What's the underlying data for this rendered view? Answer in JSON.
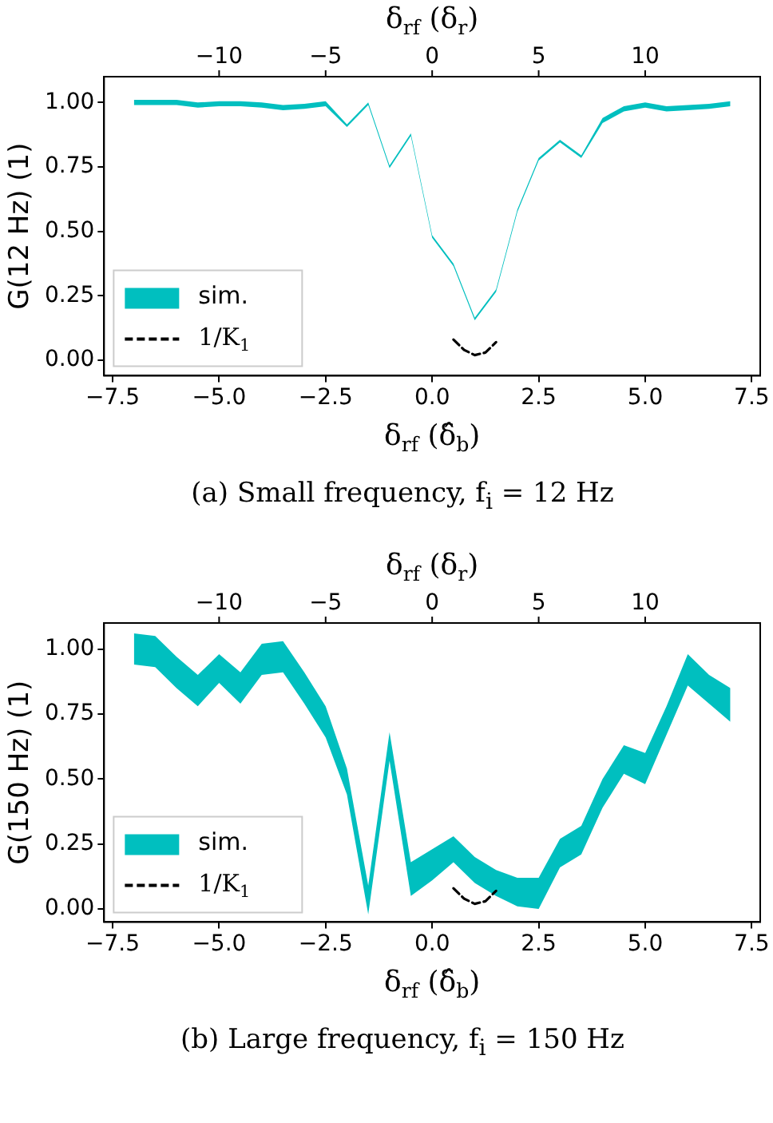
{
  "chart_data": [
    {
      "type": "line",
      "ylabel": "G(12 Hz) (1)",
      "xlabel": "δ$_{rf}$ (δ̂$_{b}$)",
      "x2label": "δ$_{rf}$ (δ$_{r}$)",
      "legend": "bottom left",
      "annotations": [
        "(a) Small frequency, f$_{i}$ = 12 Hz"
      ],
      "xlim": [
        -7.7,
        7.7
      ],
      "ylim": [
        -0.06,
        1.1
      ],
      "x2lim": [
        -15.4,
        15.4
      ],
      "xticks": [
        {
          "value": -7.5,
          "label": "−7.5"
        },
        {
          "value": -5,
          "label": "−5.0"
        },
        {
          "value": -2.5,
          "label": "−2.5"
        },
        {
          "value": 0,
          "label": "0.0"
        },
        {
          "value": 2.5,
          "label": "2.5"
        },
        {
          "value": 5,
          "label": "5.0"
        },
        {
          "value": 7.5,
          "label": "7.5"
        }
      ],
      "x2ticks": [
        -10,
        -5,
        0,
        5,
        10
      ],
      "yticks": [
        {
          "value": 0,
          "label": "0.00"
        },
        {
          "value": 0.25,
          "label": "0.25"
        },
        {
          "value": 0.5,
          "label": "0.50"
        },
        {
          "value": 0.75,
          "label": "0.75"
        },
        {
          "value": 1,
          "label": "1.00"
        }
      ],
      "x": [
        -7,
        -6.5,
        -6,
        -5.5,
        -5,
        -4.5,
        -4,
        -3.5,
        -3,
        -2.5,
        -2,
        -1.5,
        -1,
        -0.5,
        0,
        0.5,
        1,
        1.5,
        2,
        2.5,
        3,
        3.5,
        4,
        4.5,
        5,
        5.5,
        6,
        6.5,
        7
      ],
      "series": [
        {
          "name": "sim.",
          "color": "#00bfbf",
          "values": [
            null,
            null,
            null,
            null,
            null,
            null,
            null,
            null,
            null,
            null,
            null,
            null,
            null,
            null,
            null,
            null,
            null,
            null,
            null,
            null,
            null,
            null,
            null,
            null,
            null,
            null,
            null,
            null,
            null
          ],
          "lower": [
            0.99,
            0.99,
            0.99,
            0.98,
            0.985,
            0.985,
            0.98,
            0.97,
            0.975,
            0.985,
            0.905,
            0.99,
            0.745,
            0.87,
            0.475,
            0.365,
            0.155,
            0.265,
            0.575,
            0.775,
            0.845,
            0.785,
            0.92,
            0.965,
            0.98,
            0.965,
            0.97,
            0.975,
            0.985
          ],
          "upper": [
            1.01,
            1.01,
            1.01,
            1.0,
            1.005,
            1.005,
            1.0,
            0.99,
            0.995,
            1.005,
            0.915,
            1.0,
            0.755,
            0.88,
            0.485,
            0.375,
            0.165,
            0.275,
            0.585,
            0.785,
            0.855,
            0.795,
            0.94,
            0.985,
            1.0,
            0.985,
            0.99,
            0.995,
            1.005
          ]
        },
        {
          "name": "1/K$_{1}$",
          "type": "line",
          "color": "#000000",
          "line_style": "dashed",
          "x": [
            0.5,
            0.75,
            1.0,
            1.25,
            1.5
          ],
          "values": [
            0.08,
            0.04,
            0.02,
            0.03,
            0.07
          ]
        }
      ]
    },
    {
      "type": "line",
      "ylabel": "G(150 Hz) (1)",
      "xlabel": "δ$_{rf}$ (δ̂$_{b}$)",
      "x2label": "δ$_{rf}$ (δ$_{r}$)",
      "legend": "bottom left",
      "annotations": [
        "(b) Large frequency, f$_{i}$ = 150 Hz"
      ],
      "xlim": [
        -7.7,
        7.7
      ],
      "ylim": [
        -0.05,
        1.1
      ],
      "x2lim": [
        -15.4,
        15.4
      ],
      "xticks": [
        {
          "value": -7.5,
          "label": "−7.5"
        },
        {
          "value": -5,
          "label": "−5.0"
        },
        {
          "value": -2.5,
          "label": "−2.5"
        },
        {
          "value": 0,
          "label": "0.0"
        },
        {
          "value": 2.5,
          "label": "2.5"
        },
        {
          "value": 5,
          "label": "5.0"
        },
        {
          "value": 7.5,
          "label": "7.5"
        }
      ],
      "x2ticks": [
        -10,
        -5,
        0,
        5,
        10
      ],
      "yticks": [
        {
          "value": 0,
          "label": "0.00"
        },
        {
          "value": 0.25,
          "label": "0.25"
        },
        {
          "value": 0.5,
          "label": "0.50"
        },
        {
          "value": 0.75,
          "label": "0.75"
        },
        {
          "value": 1,
          "label": "1.00"
        }
      ],
      "x": [
        -7,
        -6.5,
        -6,
        -5.5,
        -5,
        -4.5,
        -4,
        -3.5,
        -3,
        -2.5,
        -2,
        -1.5,
        -1,
        -0.5,
        0,
        0.5,
        1,
        1.5,
        2,
        2.5,
        3,
        3.5,
        4,
        4.5,
        5,
        5.5,
        6,
        6.5,
        7
      ],
      "series": [
        {
          "name": "sim.",
          "color": "#00bfbf",
          "values": [
            null,
            null,
            null,
            null,
            null,
            null,
            null,
            null,
            null,
            null,
            null,
            null,
            null,
            null,
            null,
            null,
            null,
            null,
            null,
            null,
            null,
            null,
            null,
            null,
            null,
            null,
            null,
            null,
            null
          ],
          "lower": [
            0.94,
            0.93,
            0.85,
            0.78,
            0.87,
            0.79,
            0.9,
            0.91,
            0.79,
            0.66,
            0.44,
            -0.02,
            0.57,
            0.05,
            0.11,
            0.18,
            0.1,
            0.05,
            0.01,
            0.0,
            0.16,
            0.21,
            0.39,
            0.52,
            0.48,
            0.67,
            0.86,
            0.79,
            0.72
          ],
          "upper": [
            1.06,
            1.05,
            0.97,
            0.9,
            0.98,
            0.91,
            1.02,
            1.03,
            0.91,
            0.78,
            0.54,
            0.09,
            0.68,
            0.18,
            0.23,
            0.28,
            0.2,
            0.15,
            0.12,
            0.12,
            0.27,
            0.32,
            0.5,
            0.63,
            0.6,
            0.78,
            0.98,
            0.9,
            0.85
          ]
        },
        {
          "name": "1/K$_{1}$",
          "type": "line",
          "color": "#000000",
          "line_style": "dashed",
          "x": [
            0.5,
            0.75,
            1.0,
            1.25,
            1.5
          ],
          "values": [
            0.08,
            0.04,
            0.02,
            0.03,
            0.07
          ]
        }
      ]
    }
  ]
}
